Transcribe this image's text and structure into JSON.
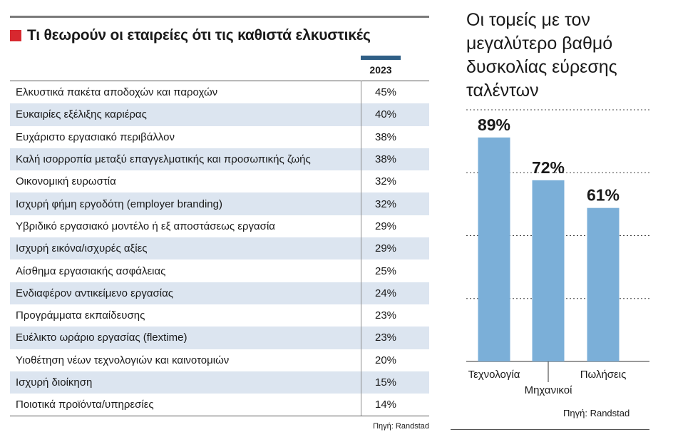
{
  "table": {
    "title": "Τι θεωρούν οι εταιρείες ότι τις καθιστά ελκυστικές",
    "year": "2023",
    "rows": [
      {
        "label": "Ελκυστικά πακέτα αποδοχών και παροχών",
        "value": "45%"
      },
      {
        "label": "Ευκαιρίες εξέλιξης καριέρας",
        "value": "40%"
      },
      {
        "label": "Ευχάριστο εργασιακό περιβάλλον",
        "value": "38%"
      },
      {
        "label": "Καλή ισορροπία μεταξύ επαγγελματικής και προσωπικής ζωής",
        "value": "38%"
      },
      {
        "label": "Οικονομική ευρωστία",
        "value": "32%"
      },
      {
        "label": "Ισχυρή φήμη εργοδότη (employer branding)",
        "value": "32%"
      },
      {
        "label": "Υβριδικό εργασιακό μοντέλο ή εξ αποστάσεως εργασία",
        "value": "29%"
      },
      {
        "label": "Ισχυρή εικόνα/ισχυρές αξίες",
        "value": "29%"
      },
      {
        "label": "Αίσθημα εργασιακής ασφάλειας",
        "value": "25%"
      },
      {
        "label": "Ενδιαφέρον αντικείμενο εργασίας",
        "value": "24%"
      },
      {
        "label": "Προγράμματα εκπαίδευσης",
        "value": "23%"
      },
      {
        "label": "Ευέλικτο ωράριο εργασίας (flextime)",
        "value": "23%"
      },
      {
        "label": "Υιοθέτηση νέων τεχνολογιών και καινοτομιών",
        "value": "20%"
      },
      {
        "label": "Ισχυρή διοίκηση",
        "value": "15%"
      },
      {
        "label": "Ποιοτικά προϊόντα/υπηρεσίες",
        "value": "14%"
      }
    ],
    "source": "Πηγή: Randstad",
    "colors": {
      "accent_square": "#d7282f",
      "year_bar": "#2f5f86",
      "row_shade": "#dce5f0"
    }
  },
  "chart_data": {
    "type": "bar",
    "title": "Οι τομείς με τον μεγαλύτερο βαθμό δυσκολίας εύρεσης ταλέντων",
    "categories": [
      "Τεχνολογία",
      "Μηχανικοί",
      "Πωλήσεις"
    ],
    "values": [
      89,
      72,
      61
    ],
    "value_labels": [
      "89%",
      "72%",
      "61%"
    ],
    "unit": "%",
    "ylim": [
      0,
      100
    ],
    "grid": true,
    "bar_color": "#7bafd8",
    "source": "Πηγή: Randstad"
  }
}
